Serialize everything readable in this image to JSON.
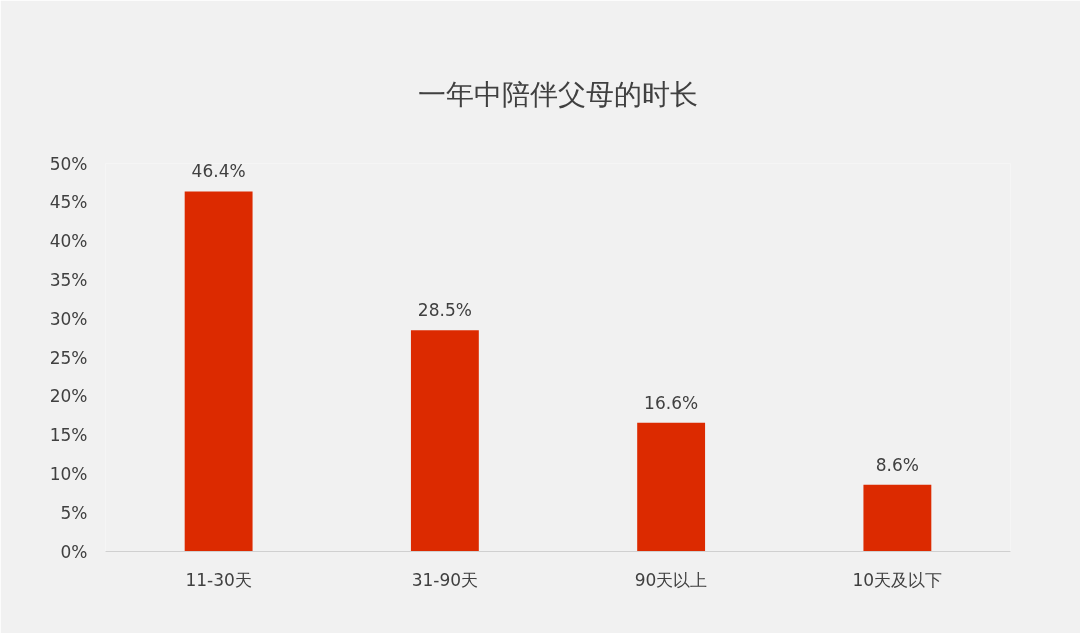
{
  "chart_data": {
    "type": "bar",
    "title": "一年中陪伴父母的时长",
    "categories": [
      "11-30天",
      "31-90天",
      "90天以上",
      "10天及以下"
    ],
    "values": [
      46.4,
      28.5,
      16.6,
      8.6
    ],
    "value_labels": [
      "46.4%",
      "28.5%",
      "16.6%",
      "8.6%"
    ],
    "color": "#dc2a00",
    "ylim": [
      0,
      50
    ],
    "yticks": [
      {
        "value": 0,
        "label": "0%"
      },
      {
        "value": 5,
        "label": "5%"
      },
      {
        "value": 10,
        "label": "10%"
      },
      {
        "value": 15,
        "label": "15%"
      },
      {
        "value": 20,
        "label": "20%"
      },
      {
        "value": 25,
        "label": "25%"
      },
      {
        "value": 30,
        "label": "30%"
      },
      {
        "value": 35,
        "label": "35%"
      },
      {
        "value": 40,
        "label": "40%"
      },
      {
        "value": 45,
        "label": "45%"
      },
      {
        "value": 50,
        "label": "50%"
      }
    ]
  }
}
